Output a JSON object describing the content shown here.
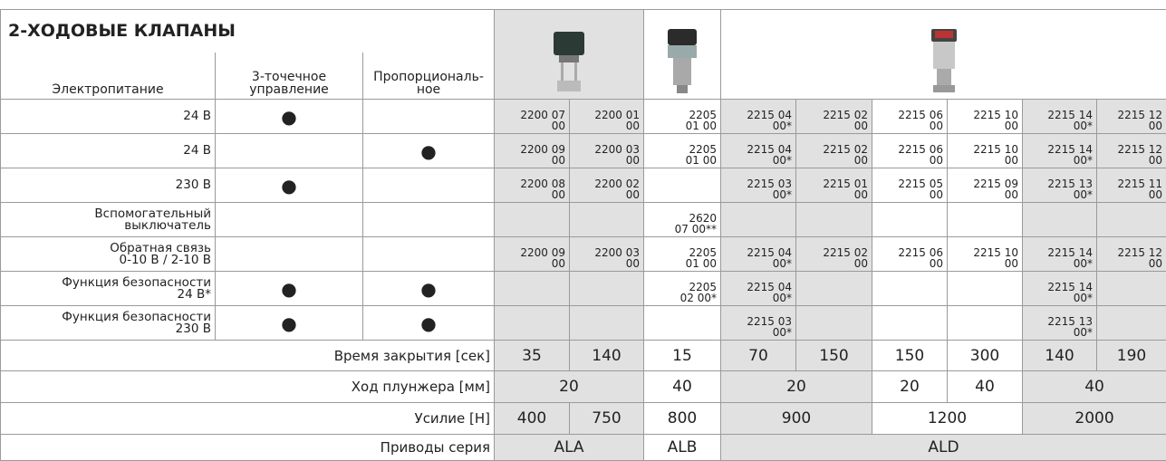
{
  "title": "2-ХОДОВЫЕ КЛАПАНЫ",
  "header": [
    "Электропитание",
    "3-точечное управление",
    "Пропорциональ-ное"
  ],
  "rows": [
    {
      "label": "24 В",
      "three_point": "●",
      "proportional": null,
      "codes": [
        "2200 07\n00",
        "2200 01\n00",
        "2205\n01 00",
        "2215 04\n00*",
        "2215 02\n00",
        "2215 06\n00",
        "2215 10\n00",
        "2215 14\n00*",
        "2215 12\n00"
      ]
    },
    {
      "label": "24 В",
      "three_point": null,
      "proportional": "●",
      "codes": [
        "2200 09\n00",
        "2200 03\n00",
        "2205\n01 00",
        "2215 04\n00*",
        "2215 02\n00",
        "2215 06\n00",
        "2215 10\n00",
        "2215 14\n00*",
        "2215 12\n00"
      ]
    },
    {
      "label": "230 В",
      "three_point": "●",
      "proportional": null,
      "codes": [
        "2200 08\n00",
        "2200 02\n00",
        null,
        "2215 03\n00*",
        "2215 01\n00",
        "2215 05\n00",
        "2215 09\n00",
        "2215 13\n00*",
        "2215 11\n00"
      ]
    },
    {
      "label": "Вспомогательный\nвыключатель",
      "three_point": null,
      "proportional": null,
      "codes": [
        null,
        null,
        "2620\n07 00**",
        null,
        null,
        null,
        null,
        null,
        null
      ]
    },
    {
      "label": "Обратная связь\n0-10 В / 2-10 В",
      "three_point": null,
      "proportional": null,
      "codes": [
        "2200 09\n00",
        "2200 03\n00",
        "2205\n01 00",
        "2215 04\n00*",
        "2215 02\n00",
        "2215 06\n00",
        "2215 10\n00",
        "2215 14\n00*",
        "2215 12\n00"
      ]
    },
    {
      "label": "Функция безопасности\n24 В*",
      "three_point": "●",
      "proportional": "●",
      "codes": [
        null,
        null,
        "2205\n02 00*",
        "2215 04\n00*",
        null,
        null,
        null,
        "2215 14\n00*",
        null
      ]
    },
    {
      "label": "Функция безопасности\n230 В",
      "three_point": "●",
      "proportional": "●",
      "codes": [
        null,
        null,
        null,
        "2215 03\n00*",
        null,
        null,
        null,
        "2215 13\n00*",
        null
      ]
    }
  ],
  "specs": [
    {
      "label": "Время закрытия [сек]",
      "values": [
        35,
        140,
        15,
        70,
        150,
        150,
        300,
        140,
        190
      ]
    },
    {
      "label": "Ход плунжера [мм]",
      "values": [
        20,
        40,
        20,
        20,
        40,
        40
      ]
    },
    {
      "label": "Усилие [Н]",
      "values": [
        400,
        750,
        800,
        900,
        1200,
        2000
      ]
    },
    {
      "label": "Приводы серия",
      "values": [
        "ALA",
        "ALB",
        "ALD"
      ]
    }
  ]
}
